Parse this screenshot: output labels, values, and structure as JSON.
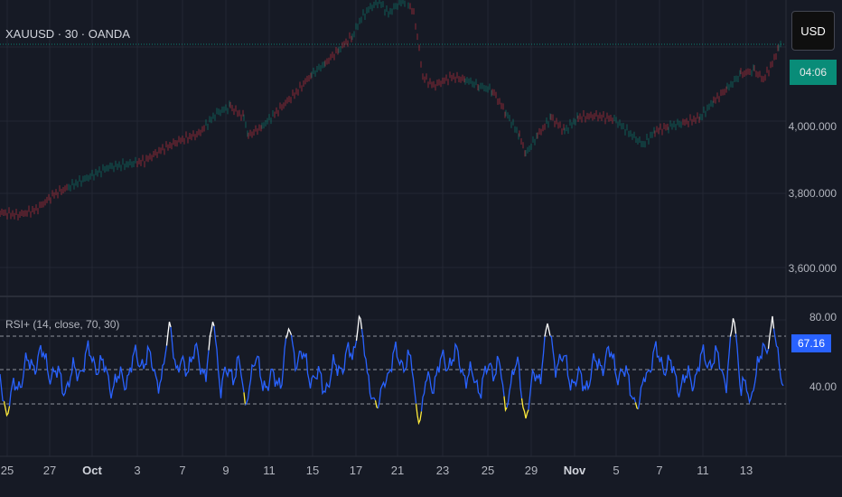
{
  "symbol_title": "XAUUSD · 30 · OANDA",
  "currency": "USD",
  "last_price_countdown": "04:06",
  "price_axis": [
    "4,000.000",
    "3,800.000",
    "3,600.000"
  ],
  "rsi": {
    "title": "RSI+ (14, close, 70, 30)",
    "levels": [
      "80.00",
      "40.00"
    ],
    "current_value": "67.16"
  },
  "time_axis": [
    {
      "label": "25",
      "bold": false
    },
    {
      "label": "27",
      "bold": false
    },
    {
      "label": "Oct",
      "bold": true
    },
    {
      "label": "3",
      "bold": false
    },
    {
      "label": "7",
      "bold": false
    },
    {
      "label": "9",
      "bold": false
    },
    {
      "label": "11",
      "bold": false
    },
    {
      "label": "15",
      "bold": false
    },
    {
      "label": "17",
      "bold": false
    },
    {
      "label": "21",
      "bold": false
    },
    {
      "label": "23",
      "bold": false
    },
    {
      "label": "25",
      "bold": false
    },
    {
      "label": "29",
      "bold": false
    },
    {
      "label": "Nov",
      "bold": true
    },
    {
      "label": "5",
      "bold": false
    },
    {
      "label": "7",
      "bold": false
    },
    {
      "label": "11",
      "bold": false
    },
    {
      "label": "13",
      "bold": false
    }
  ],
  "colors": {
    "background": "#161a25",
    "grid": "#232734",
    "candle_up": "#089981",
    "candle_down": "#f23645",
    "rsi_line": "#2962ff",
    "rsi_overbought": "#ffffff",
    "rsi_oversold": "#ffeb3b",
    "level_line": "#c0c4cc"
  },
  "icons": {}
}
